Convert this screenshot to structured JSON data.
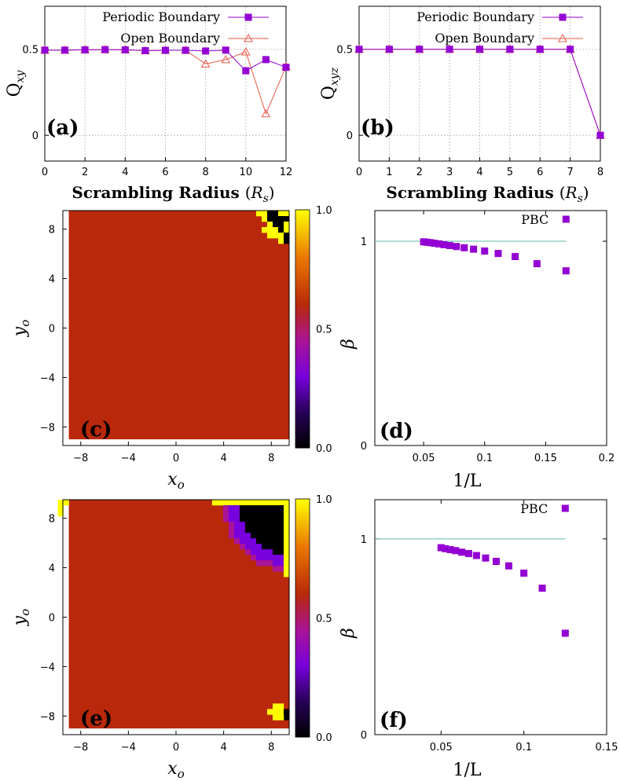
{
  "chart_data": [
    {
      "panel": "(a)",
      "type": "line",
      "xlabel": "Scrambling Radius",
      "xlabel_var": "(R_s)",
      "ylabel": "Q",
      "ylabel_sub": "xy",
      "xlim": [
        0,
        12
      ],
      "ylim": [
        -0.15,
        0.75
      ],
      "xticks": [
        "0",
        "2",
        "4",
        "6",
        "8",
        "10",
        "12"
      ],
      "yticks": [
        "0",
        "0.5"
      ],
      "legend": "top-right",
      "series": [
        {
          "name": "Periodic Boundary",
          "color": "#9400d3",
          "marker": "square",
          "x": [
            0,
            1,
            2,
            3,
            4,
            5,
            6,
            7,
            8,
            9,
            10,
            11,
            12
          ],
          "y": [
            0.495,
            0.495,
            0.497,
            0.498,
            0.497,
            0.492,
            0.494,
            0.494,
            0.49,
            0.495,
            0.375,
            0.44,
            0.395
          ]
        },
        {
          "name": "Open Boundary",
          "color": "#e8584a",
          "marker": "triangle",
          "x": [
            0,
            1,
            2,
            3,
            4,
            5,
            6,
            7,
            8,
            9,
            10,
            11,
            12
          ],
          "y": [
            0.495,
            0.495,
            0.497,
            0.498,
            0.497,
            0.492,
            0.494,
            0.494,
            0.415,
            0.44,
            0.485,
            0.125,
            0.4
          ]
        }
      ]
    },
    {
      "panel": "(b)",
      "type": "line",
      "xlabel": "Scrambling Radius",
      "xlabel_var": "(R_s)",
      "ylabel": "Q",
      "ylabel_sub": "xyz",
      "xlim": [
        0,
        8
      ],
      "ylim": [
        -0.15,
        0.75
      ],
      "xticks": [
        "0",
        "1",
        "2",
        "3",
        "4",
        "5",
        "6",
        "7",
        "8"
      ],
      "yticks": [
        "0",
        "0.5"
      ],
      "legend": "top-right",
      "series": [
        {
          "name": "Periodic Boundary",
          "color": "#9400d3",
          "marker": "square",
          "x": [
            0,
            1,
            2,
            3,
            4,
            5,
            6,
            7,
            8
          ],
          "y": [
            0.5,
            0.5,
            0.5,
            0.5,
            0.5,
            0.5,
            0.5,
            0.5,
            0.0
          ]
        },
        {
          "name": "Open Boundary",
          "color": "#e8584a",
          "marker": "triangle",
          "x": [
            0,
            1,
            2,
            3,
            4,
            5,
            6,
            7,
            8
          ],
          "y": [
            0.5,
            0.5,
            0.5,
            0.5,
            0.5,
            0.5,
            0.5,
            0.5,
            0.0
          ]
        }
      ]
    },
    {
      "panel": "(c)",
      "type": "heatmap",
      "xlabel": "x_o",
      "ylabel": "y_o",
      "xlim": [
        -9.5,
        9.5
      ],
      "ylim": [
        -9.5,
        9.5
      ],
      "xticks": [
        "-8",
        "-4",
        "0",
        "4",
        "8"
      ],
      "yticks": [
        "-8",
        "-4",
        "0",
        "4",
        "8"
      ],
      "colorbar_ticks": [
        "0.0",
        "0.5",
        "1.0"
      ],
      "background_value": 0.6,
      "notes": "uniform with small corner defect near (9,9)"
    },
    {
      "panel": "(d)",
      "type": "scatter",
      "xlabel": "1/L",
      "ylabel": "β",
      "xlim": [
        0.01,
        0.2
      ],
      "ylim": [
        0,
        1.15
      ],
      "xticks": [
        "0.05",
        "0.1",
        "0.15",
        "0.2"
      ],
      "yticks": [
        "0",
        "1"
      ],
      "reference_line": 1,
      "series": [
        {
          "name": "PBC",
          "color": "#9400d3",
          "marker": "square",
          "x": [
            0.05,
            0.0526,
            0.0556,
            0.0588,
            0.0625,
            0.0667,
            0.0714,
            0.0769,
            0.0833,
            0.0909,
            0.1,
            0.1111,
            0.125,
            0.1429,
            0.1667
          ],
          "y": [
            0.997,
            0.995,
            0.993,
            0.99,
            0.987,
            0.983,
            0.979,
            0.974,
            0.968,
            0.961,
            0.952,
            0.94,
            0.925,
            0.89,
            0.855
          ]
        }
      ]
    },
    {
      "panel": "(e)",
      "type": "heatmap",
      "xlabel": "x_o",
      "ylabel": "y_o",
      "xlim": [
        -9.5,
        9.5
      ],
      "ylim": [
        -9.5,
        9.5
      ],
      "xticks": [
        "-8",
        "-4",
        "0",
        "4",
        "8"
      ],
      "yticks": [
        "-8",
        "-4",
        "0",
        "4",
        "8"
      ],
      "colorbar_ticks": [
        "0.0",
        "0.5",
        "1.0"
      ],
      "background_value": 0.6,
      "notes": "defects at corners, dark quarter-disc near (9,9)"
    },
    {
      "panel": "(f)",
      "type": "scatter",
      "xlabel": "1/L",
      "ylabel": "β",
      "xlim": [
        0.01,
        0.15
      ],
      "ylim": [
        0,
        1.2
      ],
      "xticks": [
        "0.05",
        "0.1",
        "0.15"
      ],
      "yticks": [
        "0",
        "1"
      ],
      "reference_line": 1,
      "series": [
        {
          "name": "PBC",
          "color": "#9400d3",
          "marker": "square",
          "x": [
            0.05,
            0.0526,
            0.0556,
            0.0588,
            0.0625,
            0.0667,
            0.0714,
            0.0769,
            0.0833,
            0.0909,
            0.1,
            0.1111,
            0.125
          ],
          "y": [
            0.955,
            0.95,
            0.945,
            0.94,
            0.932,
            0.925,
            0.915,
            0.902,
            0.885,
            0.862,
            0.825,
            0.748,
            0.518
          ]
        }
      ]
    }
  ]
}
